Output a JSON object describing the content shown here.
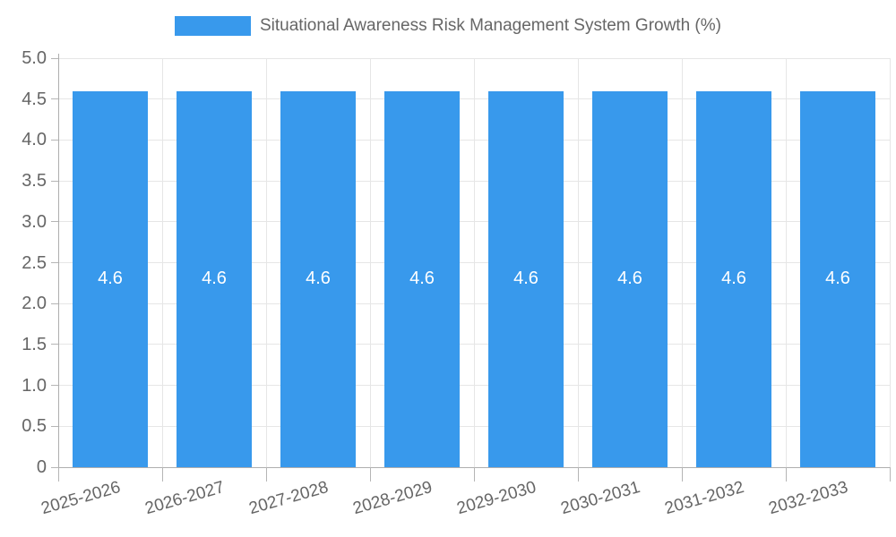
{
  "legend": {
    "label": "Situational Awareness Risk Management System Growth (%)"
  },
  "colors": {
    "bar": "#3899ec",
    "grid": "#e6e6e6",
    "axis": "#aeaeae",
    "tick_label": "#666666",
    "value_label": "#ffffff",
    "background": "#ffffff"
  },
  "chart_data": {
    "type": "bar",
    "title": "Situational Awareness Risk Management System Growth (%)",
    "categories": [
      "2025-2026",
      "2026-2027",
      "2027-2028",
      "2028-2029",
      "2029-2030",
      "2030-2031",
      "2031-2032",
      "2032-2033"
    ],
    "values": [
      4.6,
      4.6,
      4.6,
      4.6,
      4.6,
      4.6,
      4.6,
      4.6
    ],
    "bar_value_labels": [
      "4.6",
      "4.6",
      "4.6",
      "4.6",
      "4.6",
      "4.6",
      "4.6",
      "4.6"
    ],
    "xlabel": "",
    "ylabel": "",
    "ylim": [
      0,
      5
    ],
    "ytick_step": 0.5,
    "ytick_labels_top_to_bottom": [
      "5.0",
      "4.5",
      "4.0",
      "3.5",
      "3.0",
      "2.5",
      "2.0",
      "1.5",
      "1.0",
      "0.5",
      "0"
    ],
    "grid": true,
    "legend_position": "top"
  }
}
